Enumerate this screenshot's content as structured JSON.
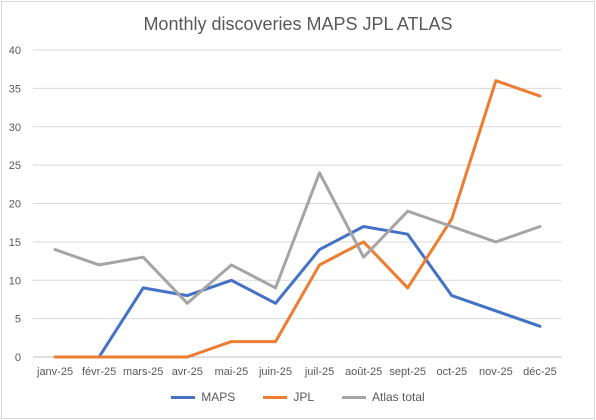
{
  "chart_data": {
    "type": "line",
    "title": "Monthly discoveries MAPS JPL ATLAS",
    "categories": [
      "janv-25",
      "févr-25",
      "mars-25",
      "avr-25",
      "mai-25",
      "juin-25",
      "juil-25",
      "août-25",
      "sept-25",
      "oct-25",
      "nov-25",
      "déc-25"
    ],
    "ylim": [
      0,
      40
    ],
    "yticks": [
      0,
      5,
      10,
      15,
      20,
      25,
      30,
      35,
      40
    ],
    "grid": true,
    "legend_position": "bottom",
    "series": [
      {
        "name": "MAPS",
        "color": "#4472c4",
        "values": [
          null,
          0,
          9,
          8,
          10,
          7,
          14,
          17,
          16,
          8,
          6,
          4
        ]
      },
      {
        "name": "JPL",
        "color": "#ed7d31",
        "values": [
          0,
          0,
          0,
          0,
          2,
          2,
          12,
          15,
          9,
          18,
          36,
          34
        ]
      },
      {
        "name": "Atlas total",
        "color": "#a5a5a5",
        "values": [
          14,
          12,
          13,
          7,
          12,
          9,
          24,
          13,
          19,
          17,
          15,
          17
        ]
      }
    ]
  }
}
